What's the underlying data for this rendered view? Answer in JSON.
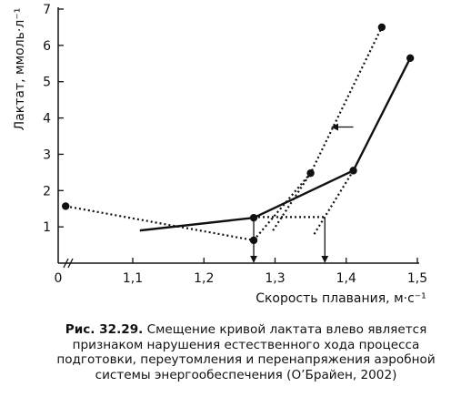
{
  "chart_data": {
    "type": "line",
    "title": "",
    "xlabel": "Скорость плавания, м·с⁻¹",
    "ylabel": "Лактат, ммоль·л⁻¹",
    "xlim": [
      1.0,
      1.5
    ],
    "ylim": [
      0,
      7
    ],
    "x_axis_break": true,
    "x_ticks": [
      {
        "value": 1.0,
        "label": "0"
      },
      {
        "value": 1.1,
        "label": "1,1"
      },
      {
        "value": 1.2,
        "label": "1,2"
      },
      {
        "value": 1.3,
        "label": "1,3"
      },
      {
        "value": 1.4,
        "label": "1,4"
      },
      {
        "value": 1.5,
        "label": "1,5"
      }
    ],
    "y_ticks": [
      {
        "value": 1,
        "label": "1"
      },
      {
        "value": 2,
        "label": "2"
      },
      {
        "value": 3,
        "label": "3"
      },
      {
        "value": 4,
        "label": "4"
      },
      {
        "value": 5,
        "label": "5"
      },
      {
        "value": 6,
        "label": "6"
      },
      {
        "value": 7,
        "label": "7"
      }
    ],
    "series": [
      {
        "style": "solid",
        "color": "#111111",
        "points": [
          {
            "x": 1.11,
            "y": 0.9,
            "marker": false
          },
          {
            "x": 1.27,
            "y": 1.25,
            "marker": true
          },
          {
            "x": 1.41,
            "y": 2.55,
            "marker": true
          },
          {
            "x": 1.49,
            "y": 5.65,
            "marker": true
          }
        ]
      },
      {
        "style": "dotted",
        "color": "#111111",
        "points": [
          {
            "x": 1.01,
            "y": 1.57,
            "marker": true
          },
          {
            "x": 1.27,
            "y": 0.63,
            "marker": true
          },
          {
            "x": 1.35,
            "y": 2.48,
            "marker": true
          },
          {
            "x": 1.45,
            "y": 6.5,
            "marker": true
          }
        ]
      }
    ],
    "guides": [
      {
        "style": "dotted",
        "from": {
          "x": 1.27,
          "y": 1.27
        },
        "to": {
          "x": 1.37,
          "y": 1.27
        }
      },
      {
        "style": "dotted",
        "from": {
          "x": 1.355,
          "y": 0.8
        },
        "to": {
          "x": 1.41,
          "y": 2.55
        }
      },
      {
        "style": "dotted",
        "from": {
          "x": 1.297,
          "y": 0.9
        },
        "to": {
          "x": 1.35,
          "y": 2.48
        }
      }
    ],
    "arrows": [
      {
        "from": {
          "x": 1.27,
          "y": 1.25
        },
        "to": {
          "x": 1.27,
          "y": 0.03
        }
      },
      {
        "from": {
          "x": 1.37,
          "y": 1.27
        },
        "to": {
          "x": 1.37,
          "y": 0.03
        }
      },
      {
        "from": {
          "x": 1.41,
          "y": 3.75
        },
        "to": {
          "x": 1.38,
          "y": 3.75
        }
      }
    ]
  },
  "caption": {
    "figure_number": "Рис. 32.29.",
    "text": "Смещение кривой лактата влево является признаком нарушения естественного хода процесса подготовки, переутомления и перенапряжения аэробной системы энергообеспечения (О’Брайен, 2002)"
  }
}
